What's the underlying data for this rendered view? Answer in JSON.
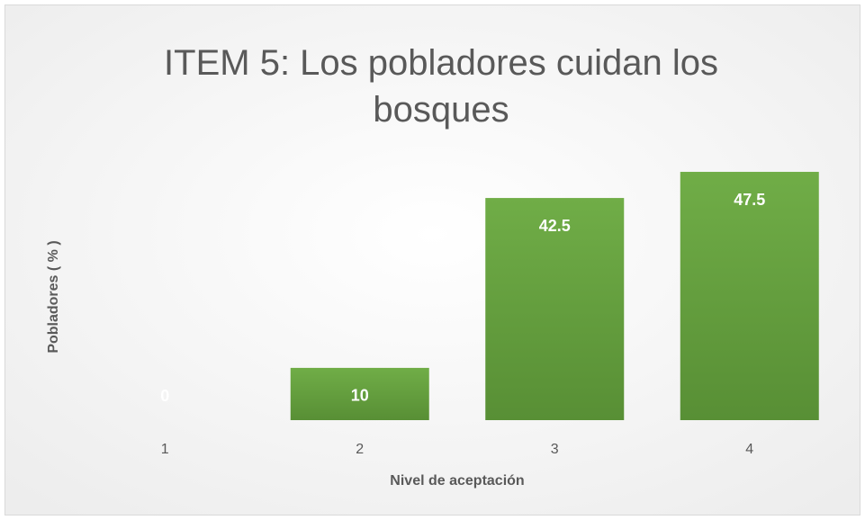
{
  "chart_data": {
    "type": "bar",
    "title": "ITEM 5: Los pobladores cuidan los bosques",
    "categories": [
      "1",
      "2",
      "3",
      "4"
    ],
    "values": [
      0,
      10,
      42.5,
      47.5
    ],
    "color": "#62a03f",
    "x_label": "Nivel de aceptación",
    "y_label": "Pobladores ( % )"
  }
}
